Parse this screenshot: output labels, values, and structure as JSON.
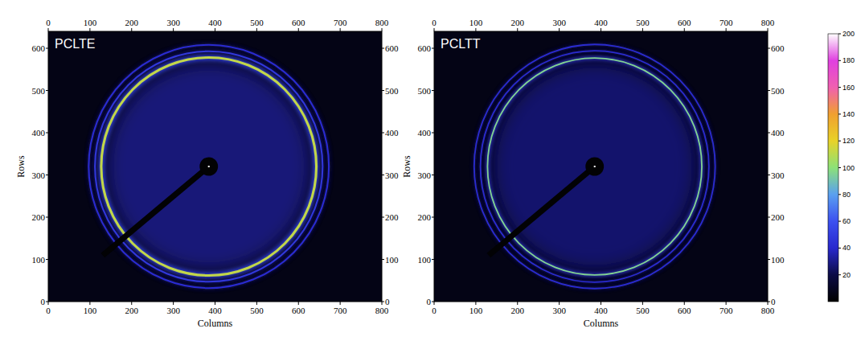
{
  "chart_data": [
    {
      "type": "image",
      "title": "PCLTE",
      "x_label": "Columns",
      "y_label": "Rows",
      "xlim": [
        0,
        800
      ],
      "ylim": [
        0,
        640
      ],
      "xticks": [
        0,
        100,
        200,
        300,
        400,
        500,
        600,
        700,
        800
      ],
      "yticks": [
        0,
        100,
        200,
        300,
        400,
        500,
        600
      ],
      "center": [
        385,
        320
      ],
      "background": 6,
      "inner_background": 30,
      "rings": [
        {
          "radius": 258,
          "intensity": 112,
          "width": 6
        },
        {
          "radius": 273,
          "intensity": 48,
          "width": 4
        },
        {
          "radius": 288,
          "intensity": 42,
          "width": 4
        }
      ]
    },
    {
      "type": "image",
      "title": "PCLTT",
      "x_label": "Columns",
      "y_label": "Rows",
      "xlim": [
        0,
        800
      ],
      "ylim": [
        0,
        640
      ],
      "xticks": [
        0,
        100,
        200,
        300,
        400,
        500,
        600,
        700,
        800
      ],
      "yticks": [
        0,
        100,
        200,
        300,
        400,
        500,
        600
      ],
      "center": [
        385,
        320
      ],
      "background": 6,
      "inner_background": 28,
      "rings": [
        {
          "radius": 257,
          "intensity": 96,
          "width": 3.5
        },
        {
          "radius": 274,
          "intensity": 42,
          "width": 3.5
        },
        {
          "radius": 289,
          "intensity": 42,
          "width": 3.5
        }
      ]
    }
  ],
  "colorbar": {
    "range": [
      0,
      200
    ],
    "ticks": [
      20,
      40,
      60,
      80,
      100,
      120,
      140,
      160,
      180,
      200
    ]
  }
}
